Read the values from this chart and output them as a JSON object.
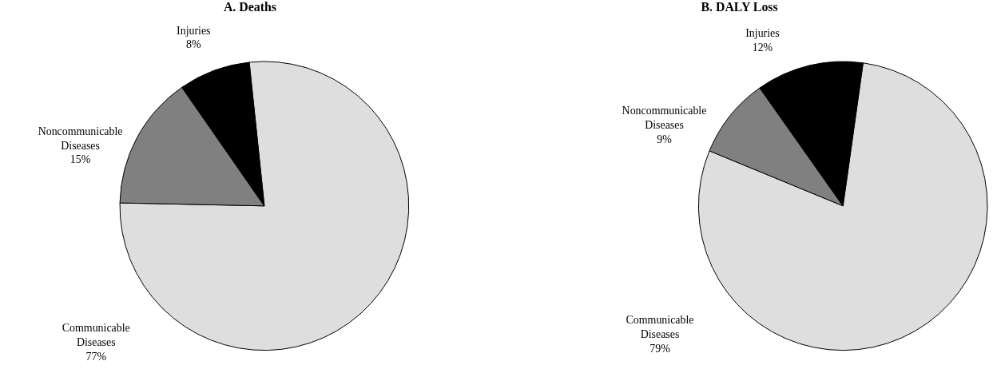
{
  "chart_data": [
    {
      "type": "pie",
      "title": "A. Deaths",
      "categories": [
        "Communicable Diseases",
        "Noncommunicable Diseases",
        "Injuries"
      ],
      "values": [
        77,
        15,
        8
      ],
      "value_labels": [
        "77%",
        "15%",
        "8%"
      ],
      "colors": [
        "#dedede",
        "#808080",
        "#000000"
      ],
      "legend": false
    },
    {
      "type": "pie",
      "title": "B. DALY Loss",
      "categories": [
        "Communicable Diseases",
        "Noncommunicable Diseases",
        "Injuries"
      ],
      "values": [
        79,
        9,
        12
      ],
      "value_labels": [
        "79%",
        "9%",
        "12%"
      ],
      "colors": [
        "#dedede",
        "#808080",
        "#000000"
      ],
      "legend": false
    }
  ]
}
